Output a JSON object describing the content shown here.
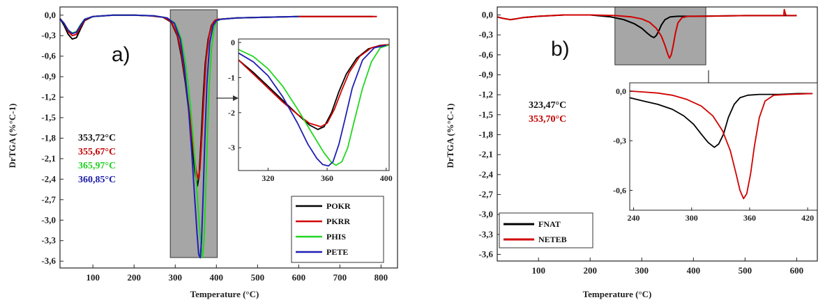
{
  "chart_data": [
    {
      "type": "line",
      "panel_label": "a)",
      "xlabel": "Temperature (°C)",
      "ylabel": "DrTGA (%°C-1)",
      "xlim": [
        20,
        840
      ],
      "ylim": [
        -3.7,
        0.12
      ],
      "x_ticks": [
        100,
        200,
        300,
        400,
        500,
        600,
        700,
        800
      ],
      "y_ticks": [
        0.0,
        -0.3,
        -0.6,
        -0.9,
        -1.2,
        -1.5,
        -1.8,
        -2.1,
        -2.4,
        -2.7,
        -3.0,
        -3.3,
        -3.6
      ],
      "x_tick_labels": [
        "100",
        "200",
        "300",
        "400",
        "500",
        "600",
        "700",
        "800"
      ],
      "y_tick_labels": [
        "0,0",
        "-0,3",
        "-0,6",
        "-0,9",
        "-1,2",
        "-1,5",
        "-1,8",
        "-2,1",
        "-2,4",
        "-2,7",
        "-3,0",
        "-3,3",
        "-3,6"
      ],
      "highlight_range": [
        288,
        402
      ],
      "peak_labels": [
        {
          "text": "353,72°C",
          "color": "#111111"
        },
        {
          "text": "355,67°C",
          "color": "#c00000"
        },
        {
          "text": "365,97°C",
          "color": "#1fd11f"
        },
        {
          "text": "360,85°C",
          "color": "#1a1aa8"
        }
      ],
      "series": [
        {
          "name": "POKR",
          "color": "#000000",
          "x": [
            20,
            30,
            40,
            50,
            60,
            70,
            80,
            100,
            150,
            200,
            240,
            270,
            290,
            305,
            315,
            325,
            335,
            342,
            348,
            353.7,
            358,
            363,
            368,
            373,
            380,
            388,
            396,
            405,
            450,
            520,
            600,
            700,
            780
          ],
          "y": [
            -0.05,
            -0.15,
            -0.28,
            -0.35,
            -0.33,
            -0.2,
            -0.08,
            -0.02,
            0.0,
            0.0,
            -0.01,
            -0.03,
            -0.1,
            -0.3,
            -0.6,
            -1.0,
            -1.5,
            -1.95,
            -2.3,
            -2.5,
            -2.35,
            -1.8,
            -1.2,
            -0.7,
            -0.35,
            -0.15,
            -0.08,
            -0.06,
            -0.04,
            -0.03,
            -0.02,
            -0.02,
            -0.02
          ]
        },
        {
          "name": "PKRR",
          "color": "#d10000",
          "x": [
            20,
            30,
            40,
            50,
            60,
            70,
            80,
            100,
            150,
            200,
            240,
            270,
            290,
            305,
            315,
            325,
            335,
            343,
            350,
            355.7,
            360,
            365,
            370,
            375,
            382,
            390,
            398,
            405,
            450,
            520,
            600,
            700,
            790
          ],
          "y": [
            -0.05,
            -0.12,
            -0.24,
            -0.3,
            -0.28,
            -0.17,
            -0.07,
            -0.02,
            0.0,
            0.0,
            -0.01,
            -0.03,
            -0.09,
            -0.28,
            -0.55,
            -0.95,
            -1.45,
            -1.9,
            -2.25,
            -2.4,
            -2.25,
            -1.75,
            -1.15,
            -0.65,
            -0.3,
            -0.13,
            -0.07,
            -0.06,
            -0.04,
            -0.03,
            -0.02,
            -0.02,
            -0.02
          ]
        },
        {
          "name": "PHIS",
          "color": "#22d622",
          "x": [
            20,
            30,
            40,
            50,
            60,
            70,
            80,
            100,
            150,
            200,
            250,
            280,
            300,
            315,
            325,
            335,
            345,
            353,
            360,
            366,
            370,
            374,
            378,
            382,
            388,
            394,
            400,
            410,
            450,
            520,
            600
          ],
          "y": [
            -0.05,
            -0.12,
            -0.22,
            -0.26,
            -0.24,
            -0.14,
            -0.06,
            -0.02,
            0.0,
            0.0,
            -0.01,
            -0.04,
            -0.12,
            -0.35,
            -0.7,
            -1.2,
            -1.9,
            -2.6,
            -3.2,
            -3.55,
            -3.3,
            -2.6,
            -1.8,
            -1.1,
            -0.5,
            -0.2,
            -0.09,
            -0.06,
            -0.04,
            -0.03,
            -0.02
          ]
        },
        {
          "name": "PETE",
          "color": "#1f1fb4",
          "x": [
            20,
            30,
            40,
            50,
            60,
            70,
            80,
            100,
            150,
            200,
            250,
            280,
            298,
            312,
            322,
            332,
            340,
            347,
            353,
            357,
            360.9,
            364,
            368,
            372,
            377,
            384,
            392,
            400,
            410,
            450,
            520,
            600
          ],
          "y": [
            -0.05,
            -0.12,
            -0.22,
            -0.27,
            -0.25,
            -0.15,
            -0.06,
            -0.02,
            0.0,
            0.0,
            -0.01,
            -0.04,
            -0.12,
            -0.35,
            -0.75,
            -1.35,
            -2.0,
            -2.65,
            -3.2,
            -3.5,
            -3.55,
            -3.3,
            -2.6,
            -1.8,
            -1.0,
            -0.4,
            -0.15,
            -0.08,
            -0.06,
            -0.04,
            -0.03,
            -0.02
          ]
        }
      ],
      "legend_placement": "bottom-right",
      "inset": {
        "xlim": [
          300,
          402
        ],
        "ylim": [
          -3.65,
          0.1
        ],
        "x_ticks": [
          320,
          360,
          400
        ],
        "y_ticks": [
          0,
          -1,
          -2,
          -3
        ],
        "x_tick_labels": [
          "320",
          "360",
          "400"
        ],
        "y_tick_labels": [
          "0",
          "-1",
          "-2",
          "-3"
        ],
        "series": [
          {
            "color": "#000000",
            "x": [
              300,
              310,
              320,
              330,
              340,
              348,
              353.7,
              358,
              363,
              368,
              373,
              380,
              388,
              396,
              402
            ],
            "y": [
              -0.5,
              -0.85,
              -1.25,
              -1.65,
              -2.05,
              -2.35,
              -2.48,
              -2.4,
              -2.0,
              -1.4,
              -0.9,
              -0.45,
              -0.18,
              -0.08,
              -0.06
            ]
          },
          {
            "color": "#d10000",
            "x": [
              300,
              310,
              320,
              330,
              340,
              348,
              355.7,
              360,
              365,
              370,
              375,
              382,
              390,
              398,
              402
            ],
            "y": [
              -0.5,
              -0.9,
              -1.3,
              -1.7,
              -2.05,
              -2.3,
              -2.4,
              -2.3,
              -1.9,
              -1.35,
              -0.85,
              -0.4,
              -0.15,
              -0.07,
              -0.06
            ]
          },
          {
            "color": "#22d622",
            "x": [
              300,
              310,
              320,
              330,
              340,
              350,
              358,
              363,
              366,
              370,
              374,
              378,
              384,
              390,
              396,
              402
            ],
            "y": [
              -0.2,
              -0.4,
              -0.75,
              -1.25,
              -1.9,
              -2.6,
              -3.15,
              -3.42,
              -3.5,
              -3.4,
              -3.0,
              -2.3,
              -1.3,
              -0.55,
              -0.15,
              -0.07
            ]
          },
          {
            "color": "#1f1fb4",
            "x": [
              300,
              310,
              320,
              330,
              340,
              347,
              353,
              357,
              360.9,
              364,
              368,
              372,
              377,
              384,
              392,
              400
            ],
            "y": [
              -0.3,
              -0.55,
              -0.95,
              -1.55,
              -2.3,
              -2.9,
              -3.3,
              -3.48,
              -3.52,
              -3.4,
              -2.9,
              -2.2,
              -1.3,
              -0.5,
              -0.15,
              -0.08
            ]
          }
        ]
      }
    },
    {
      "type": "line",
      "panel_label": "b)",
      "xlabel": "Temperature (°C)",
      "ylabel": "DrTGA (%°C-1)",
      "xlim": [
        20,
        640
      ],
      "ylim": [
        -3.7,
        0.12
      ],
      "x_ticks": [
        100,
        200,
        300,
        400,
        500,
        600
      ],
      "y_ticks": [
        0.0,
        -0.3,
        -0.6,
        -0.9,
        -1.2,
        -1.5,
        -1.8,
        -2.1,
        -2.4,
        -2.7,
        -3.0,
        -3.3,
        -3.6
      ],
      "x_tick_labels": [
        "100",
        "200",
        "300",
        "400",
        "500",
        "600"
      ],
      "y_tick_labels": [
        "0,0",
        "-0,3",
        "-0,6",
        "-0,9",
        "-1,2",
        "-1,5",
        "-1,8",
        "-2,1",
        "-2,4",
        "-2,7",
        "-3,0",
        "-3,3",
        "-3,6"
      ],
      "highlight_range": [
        248,
        424
      ],
      "highlight_ylim": [
        -0.75,
        0.12
      ],
      "peak_labels": [
        {
          "text": "323,47°C",
          "color": "#111111"
        },
        {
          "text": "353,70°C",
          "color": "#c00000"
        }
      ],
      "series": [
        {
          "name": "FNAT",
          "color": "#000000",
          "x": [
            20,
            30,
            45,
            55,
            70,
            100,
            150,
            200,
            240,
            265,
            285,
            300,
            310,
            318,
            323.5,
            328,
            333,
            338,
            345,
            355,
            370,
            400,
            500,
            600
          ],
          "y": [
            -0.03,
            -0.05,
            -0.07,
            -0.06,
            -0.04,
            -0.02,
            0.0,
            0.0,
            -0.03,
            -0.07,
            -0.13,
            -0.2,
            -0.27,
            -0.32,
            -0.34,
            -0.31,
            -0.24,
            -0.15,
            -0.07,
            -0.03,
            -0.02,
            -0.02,
            -0.01,
            -0.01
          ]
        },
        {
          "name": "NETEB",
          "color": "#d10000",
          "x": [
            20,
            30,
            45,
            55,
            70,
            100,
            150,
            200,
            250,
            280,
            300,
            315,
            328,
            338,
            345,
            350,
            353.7,
            357,
            361,
            365,
            370,
            378,
            390,
            420,
            500,
            575,
            576,
            578,
            580,
            600
          ],
          "y": [
            -0.03,
            -0.05,
            -0.07,
            -0.06,
            -0.04,
            -0.02,
            0.0,
            0.0,
            -0.01,
            -0.03,
            -0.06,
            -0.11,
            -0.2,
            -0.32,
            -0.46,
            -0.58,
            -0.65,
            -0.6,
            -0.45,
            -0.28,
            -0.12,
            -0.04,
            -0.02,
            -0.02,
            -0.01,
            -0.01,
            0.08,
            0.02,
            -0.01,
            -0.01
          ]
        }
      ],
      "legend_placement": "bottom-left",
      "inset": {
        "xlim": [
          236,
          430
        ],
        "ylim": [
          -0.72,
          0.05
        ],
        "x_ticks": [
          240,
          300,
          360,
          420
        ],
        "y_ticks": [
          0.0,
          -0.3,
          -0.6
        ],
        "x_tick_labels": [
          "240",
          "300",
          "360",
          "420"
        ],
        "y_tick_labels": [
          "0,0",
          "-0,3",
          "-0,6"
        ],
        "series": [
          {
            "color": "#000000",
            "x": [
              236,
              250,
              265,
              280,
              292,
              302,
              310,
              317,
              323.5,
              328,
              333,
              338,
              344,
              350,
              358,
              370,
              390,
              410,
              425
            ],
            "y": [
              -0.04,
              -0.06,
              -0.08,
              -0.11,
              -0.15,
              -0.2,
              -0.26,
              -0.31,
              -0.34,
              -0.32,
              -0.26,
              -0.16,
              -0.08,
              -0.04,
              -0.025,
              -0.02,
              -0.02,
              -0.015,
              -0.015
            ]
          },
          {
            "color": "#d10000",
            "x": [
              236,
              250,
              265,
              280,
              295,
              310,
              322,
              332,
              340,
              346,
              350,
              353.7,
              357,
              361,
              365,
              370,
              376,
              385,
              400,
              425
            ],
            "y": [
              0.0,
              -0.005,
              -0.012,
              -0.025,
              -0.05,
              -0.09,
              -0.15,
              -0.24,
              -0.36,
              -0.5,
              -0.6,
              -0.65,
              -0.62,
              -0.5,
              -0.33,
              -0.16,
              -0.06,
              -0.025,
              -0.02,
              -0.015
            ]
          }
        ]
      }
    }
  ]
}
